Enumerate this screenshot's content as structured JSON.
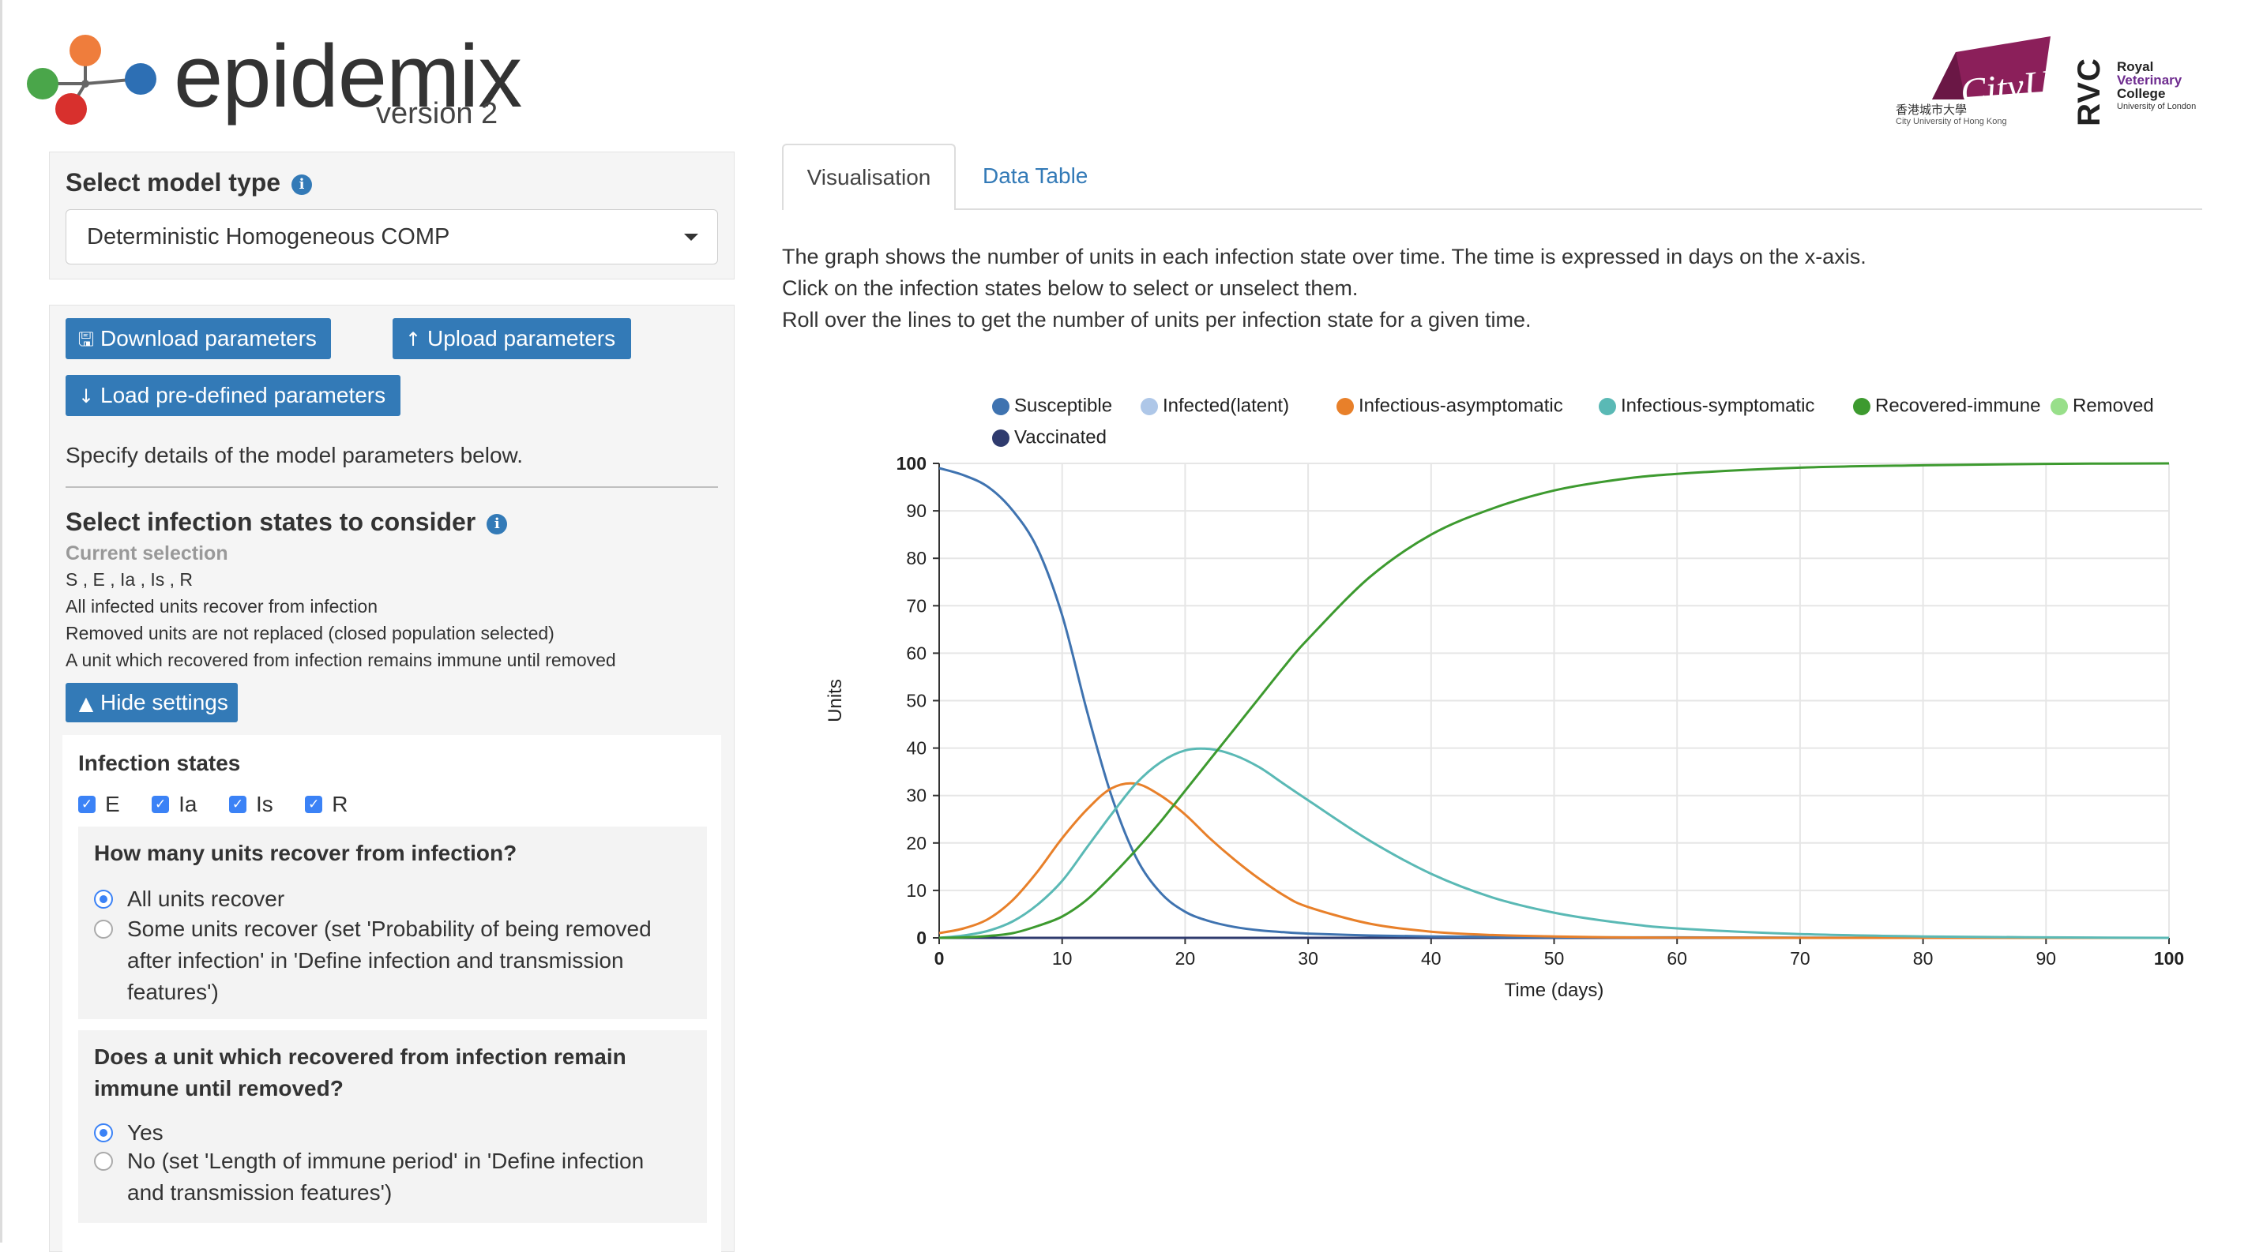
{
  "header": {
    "app_name": "epidemix",
    "version": "version 2",
    "cityu_logo_text": "CityU",
    "cityu_chinese": "香港城市大學",
    "cityu_english": "City University of Hong Kong",
    "rvc_mark": "RVC",
    "rvc_line1": "Royal",
    "rvc_line2": "Veterinary",
    "rvc_line3": "College",
    "rvc_line4": "University of London"
  },
  "model": {
    "title": "Select model type",
    "selected": "Deterministic Homogeneous COMP"
  },
  "params": {
    "download_label": "Download parameters",
    "upload_label": "Upload parameters",
    "load_label": "Load pre-defined parameters",
    "specify_text": "Specify details of the model parameters below.",
    "infection_title": "Select infection states to consider",
    "current_selection_label": "Current selection",
    "selection_lines": [
      "S , E , Ia , Is , R",
      "All infected units recover from infection",
      "Removed units are not replaced (closed population selected)",
      "A unit which recovered from infection remains immune until removed"
    ],
    "hide_settings_label": "Hide settings",
    "infection_states_title": "Infection states",
    "states": [
      "E",
      "Ia",
      "Is",
      "R"
    ],
    "q1": {
      "title": "How many units recover from infection?",
      "opt1": "All units recover",
      "opt2_lines": [
        "Some units recover (set 'Probability of being removed",
        "after infection' in 'Define infection and transmission",
        "features')"
      ]
    },
    "q2": {
      "title_lines": [
        "Does a unit which recovered from infection remain",
        "immune until removed?"
      ],
      "opt1": "Yes",
      "opt2_lines": [
        "No (set 'Length of immune period' in 'Define infection",
        "and transmission features')"
      ]
    }
  },
  "tabs": {
    "active": "Visualisation",
    "other": "Data Table"
  },
  "description": [
    "The graph shows the number of units in each infection state over time. The time is expressed in days on the x-axis.",
    "Click on the infection states below to select or unselect them.",
    "Roll over the lines to get the number of units per infection state for a given time."
  ],
  "chart_data": {
    "type": "line",
    "xlabel": "Time (days)",
    "ylabel": "Units",
    "xlim": [
      0,
      100
    ],
    "ylim": [
      0,
      100
    ],
    "xticks": [
      "0",
      "10",
      "20",
      "30",
      "40",
      "50",
      "60",
      "70",
      "80",
      "90",
      "100"
    ],
    "yticks": [
      "0",
      "10",
      "20",
      "30",
      "40",
      "50",
      "60",
      "70",
      "80",
      "90",
      "100"
    ],
    "grid": true,
    "legend_position": "top",
    "x": [
      0,
      2,
      4,
      6,
      8,
      10,
      12,
      14,
      16,
      18,
      20,
      22,
      24,
      26,
      28,
      30,
      35,
      40,
      45,
      50,
      55,
      60,
      70,
      80,
      90,
      100
    ],
    "series": [
      {
        "name": "Susceptible",
        "color": "#3f73b0",
        "values": [
          99,
          97.5,
          95,
          90,
          82,
          68,
          48,
          30,
          17,
          9.5,
          5.5,
          3.5,
          2.3,
          1.6,
          1.2,
          0.9,
          0.5,
          0.3,
          0.2,
          0.1,
          0.1,
          0.1,
          0.05,
          0,
          0,
          0
        ]
      },
      {
        "name": "Infected(latent)",
        "color": "#aec7e8",
        "values": [
          0,
          0,
          0,
          0,
          0,
          0,
          0,
          0,
          0,
          0,
          0,
          0,
          0,
          0,
          0,
          0,
          0,
          0,
          0,
          0,
          0,
          0,
          0,
          0,
          0,
          0
        ]
      },
      {
        "name": "Infectious-asymptomatic",
        "color": "#e8802a",
        "values": [
          1,
          2,
          4,
          8,
          14,
          21,
          27,
          31.5,
          32.5,
          30,
          26,
          21,
          16.5,
          12.5,
          9,
          6.5,
          3,
          1.3,
          0.6,
          0.3,
          0.1,
          0.05,
          0,
          0,
          0,
          0
        ]
      },
      {
        "name": "Infectious-symptomatic",
        "color": "#5ab9b5",
        "values": [
          0,
          0.5,
          1.5,
          3.5,
          7,
          12,
          19,
          26,
          32.5,
          37,
          39.5,
          39.8,
          38.5,
          36,
          32.5,
          29,
          20.5,
          13.5,
          8.5,
          5.3,
          3.3,
          2,
          0.8,
          0.3,
          0.1,
          0
        ]
      },
      {
        "name": "Recovered-immune",
        "color": "#3d9a2f",
        "values": [
          0,
          0.1,
          0.4,
          1,
          2.5,
          4.5,
          8,
          13,
          18.5,
          24.5,
          31,
          37.5,
          44,
          50.5,
          57,
          63,
          76,
          85,
          90.5,
          94.3,
          96.5,
          97.8,
          99.1,
          99.6,
          99.9,
          100
        ]
      },
      {
        "name": "Removed",
        "color": "#98df8a",
        "values": [
          0,
          0,
          0,
          0,
          0,
          0,
          0,
          0,
          0,
          0,
          0,
          0,
          0,
          0,
          0,
          0,
          0,
          0,
          0,
          0,
          0,
          0,
          0,
          0,
          0,
          0
        ]
      },
      {
        "name": "Vaccinated",
        "color": "#2f3b6e",
        "values": [
          0,
          0,
          0,
          0,
          0,
          0,
          0,
          0,
          0,
          0,
          0,
          0,
          0,
          0,
          0,
          0,
          0,
          0,
          0,
          0,
          0,
          0,
          0,
          0,
          0,
          0
        ]
      }
    ]
  }
}
